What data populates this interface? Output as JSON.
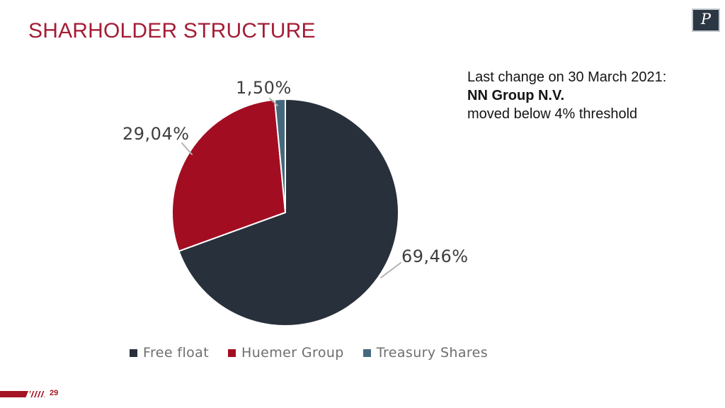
{
  "slide": {
    "title": "SHARHOLDER STRUCTURE",
    "page_number": "29",
    "logo_letter": "P"
  },
  "annotation": {
    "line1": "Last change on 30 March 2021:",
    "line2": "NN Group N.V.",
    "line3": "moved below 4% threshold"
  },
  "chart_data": {
    "type": "pie",
    "title": "Shareholder structure",
    "labels": [
      "Free float",
      "Huemer Group",
      "Treasury Shares"
    ],
    "values": [
      69.46,
      29.04,
      1.5
    ],
    "value_labels": [
      "69,46%",
      "29,04%",
      "1,50%"
    ],
    "colors": [
      "#28303B",
      "#A30D22",
      "#44697D"
    ],
    "start_angle_deg": 0,
    "direction": "clockwise",
    "legend_position": "bottom",
    "slice_separator_color": "#FFFFFF",
    "label_color": "#3E3E3E",
    "leader_line_color": "#B5B2B2"
  },
  "theme": {
    "title_color": "#A41D35",
    "accent_red": "#A41425",
    "logo_background": "#2B3742"
  }
}
